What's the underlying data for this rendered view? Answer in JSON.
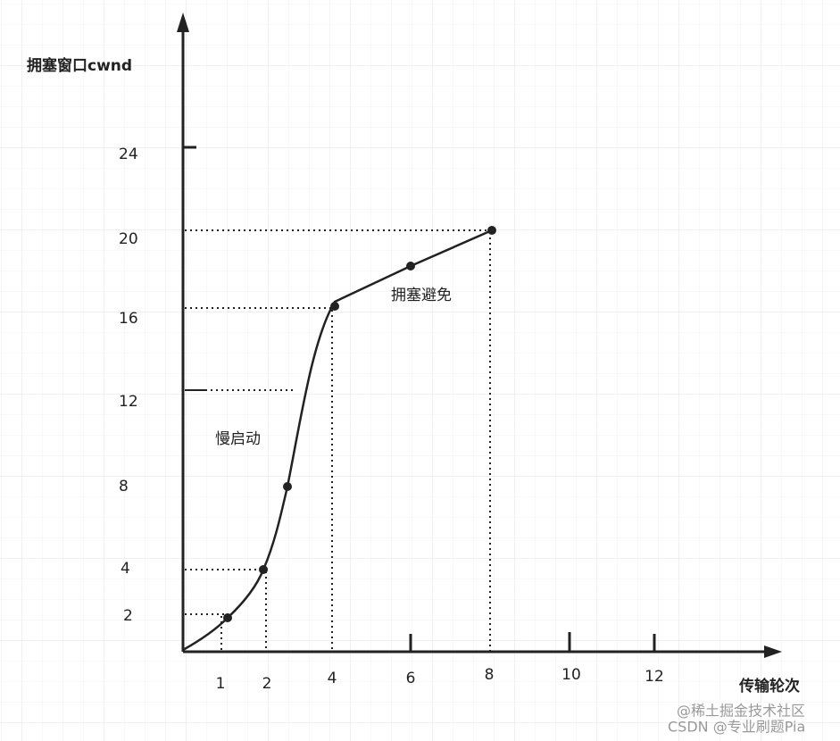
{
  "axes": {
    "y_title": "拥塞窗口cwnd",
    "x_title": "传输轮次",
    "y_labels": [
      "24",
      "20",
      "16",
      "12",
      "8",
      "4",
      "2"
    ],
    "x_labels": [
      "1",
      "2",
      "4",
      "6",
      "8",
      "10",
      "12"
    ]
  },
  "annotations": {
    "slow_start": "慢启动",
    "congestion_avoidance": "拥塞避免"
  },
  "watermark": {
    "line1": "@稀土掘金技术社区",
    "line2": "CSDN @专业刷题Pia"
  }
}
